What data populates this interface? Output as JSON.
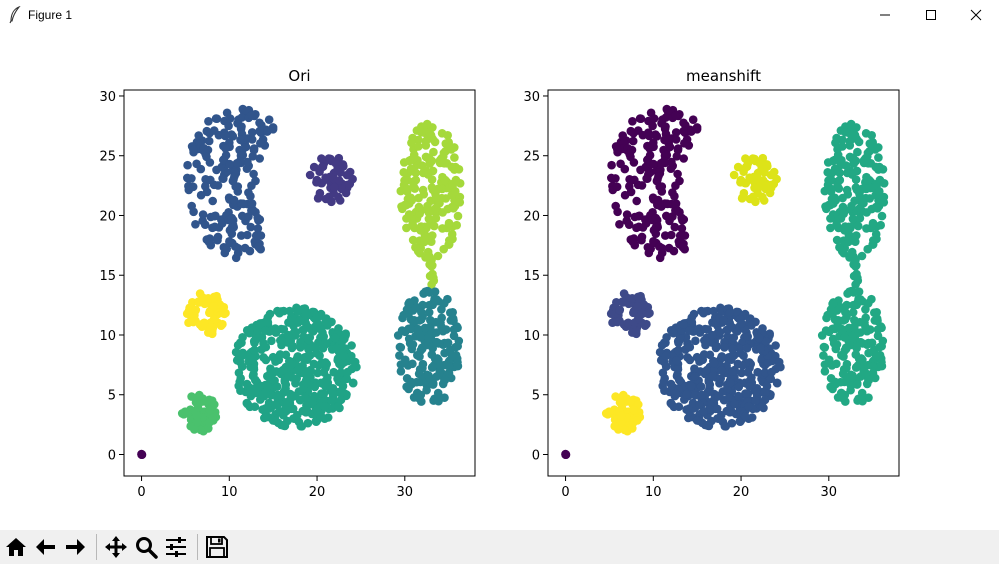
{
  "window": {
    "title": "Figure 1",
    "controls": [
      "minimize-icon",
      "maximize-icon",
      "close-icon"
    ]
  },
  "toolbar": {
    "buttons": [
      {
        "name": "home-button",
        "icon": "home-icon"
      },
      {
        "name": "back-button",
        "icon": "arrow-left-icon"
      },
      {
        "name": "forward-button",
        "icon": "arrow-right-icon"
      },
      {
        "name": "pan-button",
        "icon": "move-icon"
      },
      {
        "name": "zoom-button",
        "icon": "magnifier-icon"
      },
      {
        "name": "configure-subplots-button",
        "icon": "sliders-icon"
      },
      {
        "name": "save-button",
        "icon": "floppy-disk-icon"
      }
    ]
  },
  "chart_data": [
    {
      "type": "scatter",
      "title": "Ori",
      "xlabel": "",
      "ylabel": "",
      "xlim": [
        -2,
        38
      ],
      "ylim": [
        -1.8,
        30.5
      ],
      "xticks": [
        0,
        10,
        20,
        30
      ],
      "yticks": [
        0,
        5,
        10,
        15,
        20,
        25,
        30
      ],
      "grid": false,
      "clusters": [
        {
          "shape": "point",
          "cx": 0,
          "cy": 0,
          "color": "#440154",
          "n": 3
        },
        {
          "shape": "crescent",
          "cx": 10.5,
          "cy": 22.5,
          "color": "#31558c",
          "n": 210
        },
        {
          "shape": "blob",
          "cx": 21.5,
          "cy": 23.0,
          "rx": 2.6,
          "ry": 2.0,
          "color": "#433a84",
          "n": 55
        },
        {
          "shape": "blob",
          "cx": 33.0,
          "cy": 22.0,
          "rx": 3.5,
          "ry": 5.8,
          "color": "#a5d93b",
          "n": 180
        },
        {
          "shape": "bridge",
          "x1": 32.7,
          "y1": 17.0,
          "x2": 33.2,
          "y2": 14.0,
          "color": "#a5d93b",
          "n": 12
        },
        {
          "shape": "blob",
          "cx": 32.8,
          "cy": 9.0,
          "rx": 3.8,
          "ry": 4.8,
          "color": "#26828e",
          "n": 170
        },
        {
          "shape": "blob",
          "cx": 7.3,
          "cy": 11.8,
          "rx": 2.3,
          "ry": 1.8,
          "color": "#fde725",
          "n": 60
        },
        {
          "shape": "blob",
          "cx": 17.5,
          "cy": 7.3,
          "rx": 7.0,
          "ry": 5.0,
          "color": "#20a386",
          "n": 430
        },
        {
          "shape": "blob",
          "cx": 6.6,
          "cy": 3.5,
          "rx": 2.0,
          "ry": 1.6,
          "color": "#4ac16d",
          "n": 60
        }
      ]
    },
    {
      "type": "scatter",
      "title": "meanshift",
      "xlabel": "",
      "ylabel": "",
      "xlim": [
        -2,
        38
      ],
      "ylim": [
        -1.8,
        30.5
      ],
      "xticks": [
        0,
        10,
        20,
        30
      ],
      "yticks": [
        0,
        5,
        10,
        15,
        20,
        25,
        30
      ],
      "grid": false,
      "clusters": [
        {
          "shape": "point",
          "cx": 0,
          "cy": 0,
          "color": "#440154",
          "n": 3
        },
        {
          "shape": "crescent",
          "cx": 10.5,
          "cy": 22.5,
          "color": "#440154",
          "n": 210
        },
        {
          "shape": "blob",
          "cx": 21.5,
          "cy": 23.0,
          "rx": 2.6,
          "ry": 2.0,
          "color": "#dde318",
          "n": 55
        },
        {
          "shape": "blob",
          "cx": 33.0,
          "cy": 22.0,
          "rx": 3.5,
          "ry": 5.8,
          "color": "#22a884",
          "n": 180
        },
        {
          "shape": "bridge",
          "x1": 32.7,
          "y1": 17.0,
          "x2": 33.2,
          "y2": 14.0,
          "color": "#22a884",
          "n": 12
        },
        {
          "shape": "blob",
          "cx": 32.8,
          "cy": 9.0,
          "rx": 3.8,
          "ry": 4.8,
          "color": "#22a884",
          "n": 170
        },
        {
          "shape": "blob",
          "cx": 7.3,
          "cy": 11.8,
          "rx": 2.3,
          "ry": 1.8,
          "color": "#3e4a89",
          "n": 60
        },
        {
          "shape": "blob",
          "cx": 17.5,
          "cy": 7.3,
          "rx": 7.0,
          "ry": 5.0,
          "color": "#31558c",
          "n": 430
        },
        {
          "shape": "blob",
          "cx": 6.6,
          "cy": 3.5,
          "rx": 2.0,
          "ry": 1.6,
          "color": "#fde725",
          "n": 60
        }
      ]
    }
  ]
}
